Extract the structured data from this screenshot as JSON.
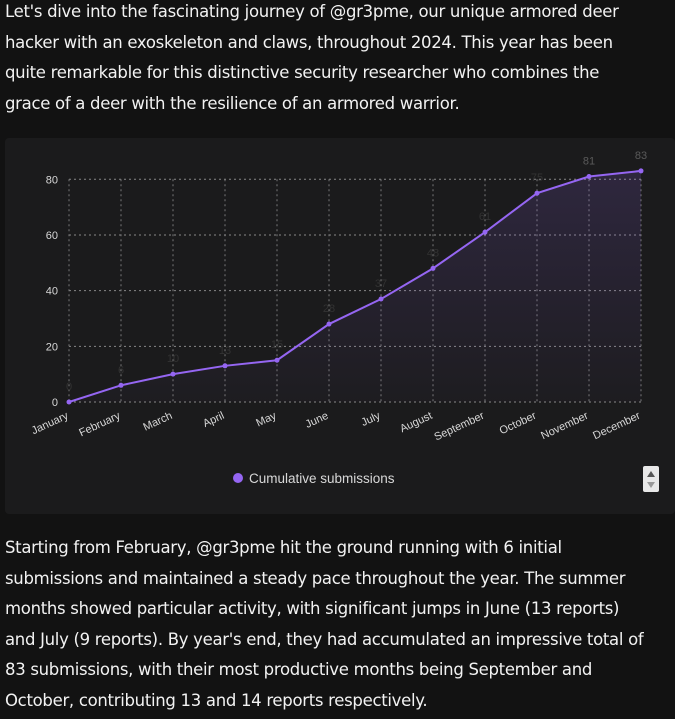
{
  "intro": [
    "Let's dive into the fascinating journey of @gr3pme, our unique armored deer",
    "hacker with an exoskeleton and claws, throughout 2024. This year has been",
    "quite remarkable for this distinctive security researcher who combines the",
    "grace of a deer with the resilience of an armored warrior."
  ],
  "chart_data": {
    "type": "line",
    "categories": [
      "January",
      "February",
      "March",
      "April",
      "May",
      "June",
      "July",
      "August",
      "September",
      "October",
      "November",
      "December"
    ],
    "series": [
      {
        "name": "Cumulative submissions",
        "color": "#9566f2",
        "values": [
          0,
          6,
          10,
          13,
          15,
          28,
          37,
          48,
          61,
          75,
          81,
          83
        ]
      }
    ],
    "ylim": [
      0,
      88
    ],
    "yticks": [
      0,
      20,
      40,
      60,
      80
    ],
    "grid": true,
    "legend": "bottom"
  },
  "outro": [
    "Starting from February, @gr3pme hit the ground running with 6 initial",
    "submissions and maintained a steady pace throughout the year. The summer",
    "months showed particular activity, with significant jumps in June (13 reports)",
    "and July (9 reports). By year's end, they had accumulated an impressive total of",
    "83 submissions, with their most productive months being September and",
    "October, contributing 13 and 14 reports respectively."
  ]
}
